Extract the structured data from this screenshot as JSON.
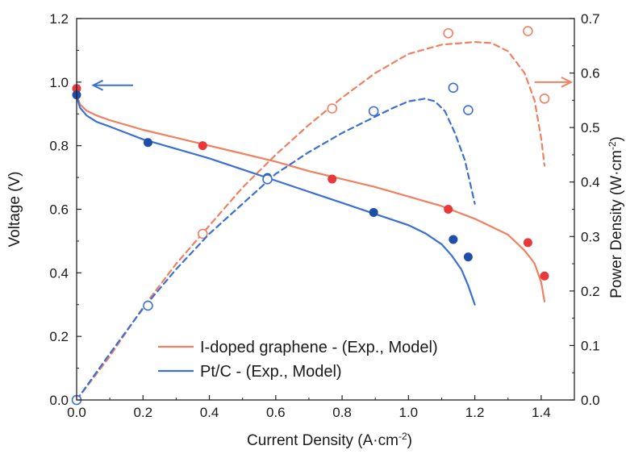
{
  "chart_data": {
    "type": "line",
    "x_axis": {
      "label": "Current Density (A·cm",
      "label_sup": "-2",
      "label_end": ")",
      "range": [
        0.0,
        1.5
      ],
      "ticks": [
        0.0,
        0.2,
        0.4,
        0.6,
        0.8,
        1.0,
        1.2,
        1.4
      ],
      "tick_labels": [
        "0.0",
        "0.2",
        "0.4",
        "0.6",
        "0.8",
        "1.0",
        "1.2",
        "1.4"
      ]
    },
    "y_left": {
      "label": "Voltage (V)",
      "range": [
        0.0,
        1.2
      ],
      "ticks": [
        0.0,
        0.2,
        0.4,
        0.6,
        0.8,
        1.0,
        1.2
      ],
      "tick_labels": [
        "0.0",
        "0.2",
        "0.4",
        "0.6",
        "0.8",
        "1.0",
        "1.2"
      ]
    },
    "y_right": {
      "label": "Power Density (W·cm",
      "label_sup": "-2",
      "label_end": ")",
      "range": [
        0.0,
        0.7
      ],
      "ticks": [
        0.0,
        0.1,
        0.2,
        0.3,
        0.4,
        0.5,
        0.6,
        0.7
      ],
      "tick_labels": [
        "0.0",
        "0.1",
        "0.2",
        "0.3",
        "0.4",
        "0.5",
        "0.6",
        "0.7"
      ]
    },
    "grid": false,
    "legend": {
      "placement": "bottom-center",
      "entries": [
        {
          "label": "I-doped graphene - (Exp., Model)",
          "color": "#f08060"
        },
        {
          "label": "Pt/C - (Exp., Model)",
          "color": "#3b6fd4"
        }
      ]
    },
    "arrows": [
      {
        "points_to": "left-axis",
        "color": "#3b6fd4",
        "x_from": 0.17,
        "x_to": 0.05,
        "y": 0.99
      },
      {
        "points_to": "right-axis",
        "color": "#f08060",
        "x_from": 1.38,
        "x_to": 1.49,
        "y": 1.0
      }
    ],
    "colors": {
      "i_doped_model": "#f08060",
      "i_doped_exp": "#e8383a",
      "ptc_model": "#3b6fd4",
      "ptc_exp": "#1f4ea8"
    },
    "series": [
      {
        "name": "I-doped graphene - (Exp., Model)",
        "quantity": "voltage_model",
        "axis": "left",
        "style": "solid",
        "color": "#f08060",
        "x": [
          0.0,
          0.01,
          0.03,
          0.06,
          0.1,
          0.2,
          0.3,
          0.4,
          0.5,
          0.6,
          0.7,
          0.8,
          0.9,
          1.0,
          1.1,
          1.2,
          1.3,
          1.35,
          1.38,
          1.4,
          1.41
        ],
        "y": [
          0.96,
          0.93,
          0.91,
          0.895,
          0.88,
          0.85,
          0.825,
          0.8,
          0.775,
          0.75,
          0.72,
          0.695,
          0.67,
          0.64,
          0.61,
          0.57,
          0.52,
          0.47,
          0.43,
          0.37,
          0.31
        ]
      },
      {
        "name": "I-doped graphene - (Exp., Model)",
        "quantity": "voltage_exp",
        "axis": "left",
        "style": "filled-dots",
        "color": "#e8383a",
        "x": [
          0.0,
          0.38,
          0.77,
          1.12,
          1.36,
          1.41
        ],
        "y": [
          0.98,
          0.8,
          0.695,
          0.6,
          0.495,
          0.39
        ]
      },
      {
        "name": "I-doped graphene - (Exp., Model)",
        "quantity": "power_model",
        "axis": "right",
        "style": "dashed",
        "color": "#f08060",
        "x": [
          0.0,
          0.1,
          0.2,
          0.3,
          0.4,
          0.5,
          0.6,
          0.7,
          0.8,
          0.9,
          1.0,
          1.1,
          1.2,
          1.25,
          1.3,
          1.35,
          1.38,
          1.4,
          1.41
        ],
        "y": [
          0.0,
          0.08,
          0.17,
          0.25,
          0.32,
          0.39,
          0.45,
          0.505,
          0.555,
          0.6,
          0.635,
          0.652,
          0.657,
          0.655,
          0.64,
          0.6,
          0.55,
          0.48,
          0.43
        ]
      },
      {
        "name": "I-doped graphene - (Exp., Model)",
        "quantity": "power_exp",
        "axis": "right",
        "style": "open-circles",
        "color": "#f08060",
        "x": [
          0.38,
          0.77,
          1.12,
          1.36,
          1.41
        ],
        "y": [
          0.305,
          0.535,
          0.673,
          0.677,
          0.553
        ]
      },
      {
        "name": "Pt/C - (Exp., Model)",
        "quantity": "voltage_model",
        "axis": "left",
        "style": "solid",
        "color": "#3b6fd4",
        "x": [
          0.0,
          0.01,
          0.03,
          0.06,
          0.1,
          0.15,
          0.2,
          0.3,
          0.4,
          0.5,
          0.6,
          0.7,
          0.8,
          0.9,
          1.0,
          1.05,
          1.1,
          1.13,
          1.16,
          1.18,
          1.2
        ],
        "y": [
          0.955,
          0.92,
          0.895,
          0.875,
          0.86,
          0.84,
          0.82,
          0.79,
          0.76,
          0.725,
          0.69,
          0.655,
          0.62,
          0.585,
          0.55,
          0.525,
          0.49,
          0.455,
          0.41,
          0.36,
          0.3
        ]
      },
      {
        "name": "Pt/C - (Exp., Model)",
        "quantity": "voltage_exp",
        "axis": "left",
        "style": "filled-dots",
        "color": "#1f4ea8",
        "x": [
          0.0,
          0.215,
          0.575,
          0.895,
          1.135,
          1.18
        ],
        "y": [
          0.96,
          0.81,
          0.7,
          0.59,
          0.505,
          0.45
        ]
      },
      {
        "name": "Pt/C - (Exp., Model)",
        "quantity": "power_model",
        "axis": "right",
        "style": "dashed",
        "color": "#3b6fd4",
        "x": [
          0.0,
          0.1,
          0.2,
          0.3,
          0.4,
          0.5,
          0.6,
          0.7,
          0.8,
          0.9,
          0.95,
          1.0,
          1.05,
          1.08,
          1.11,
          1.14,
          1.17,
          1.2
        ],
        "y": [
          0.0,
          0.085,
          0.168,
          0.24,
          0.305,
          0.36,
          0.415,
          0.455,
          0.49,
          0.52,
          0.535,
          0.548,
          0.553,
          0.548,
          0.53,
          0.49,
          0.44,
          0.36
        ]
      },
      {
        "name": "Pt/C - (Exp., Model)",
        "quantity": "power_exp",
        "axis": "right",
        "style": "open-circles",
        "color": "#3b6fd4",
        "x": [
          0.0,
          0.215,
          0.575,
          0.895,
          1.135,
          1.18
        ],
        "y": [
          0.0,
          0.173,
          0.405,
          0.53,
          0.573,
          0.532
        ]
      }
    ]
  }
}
